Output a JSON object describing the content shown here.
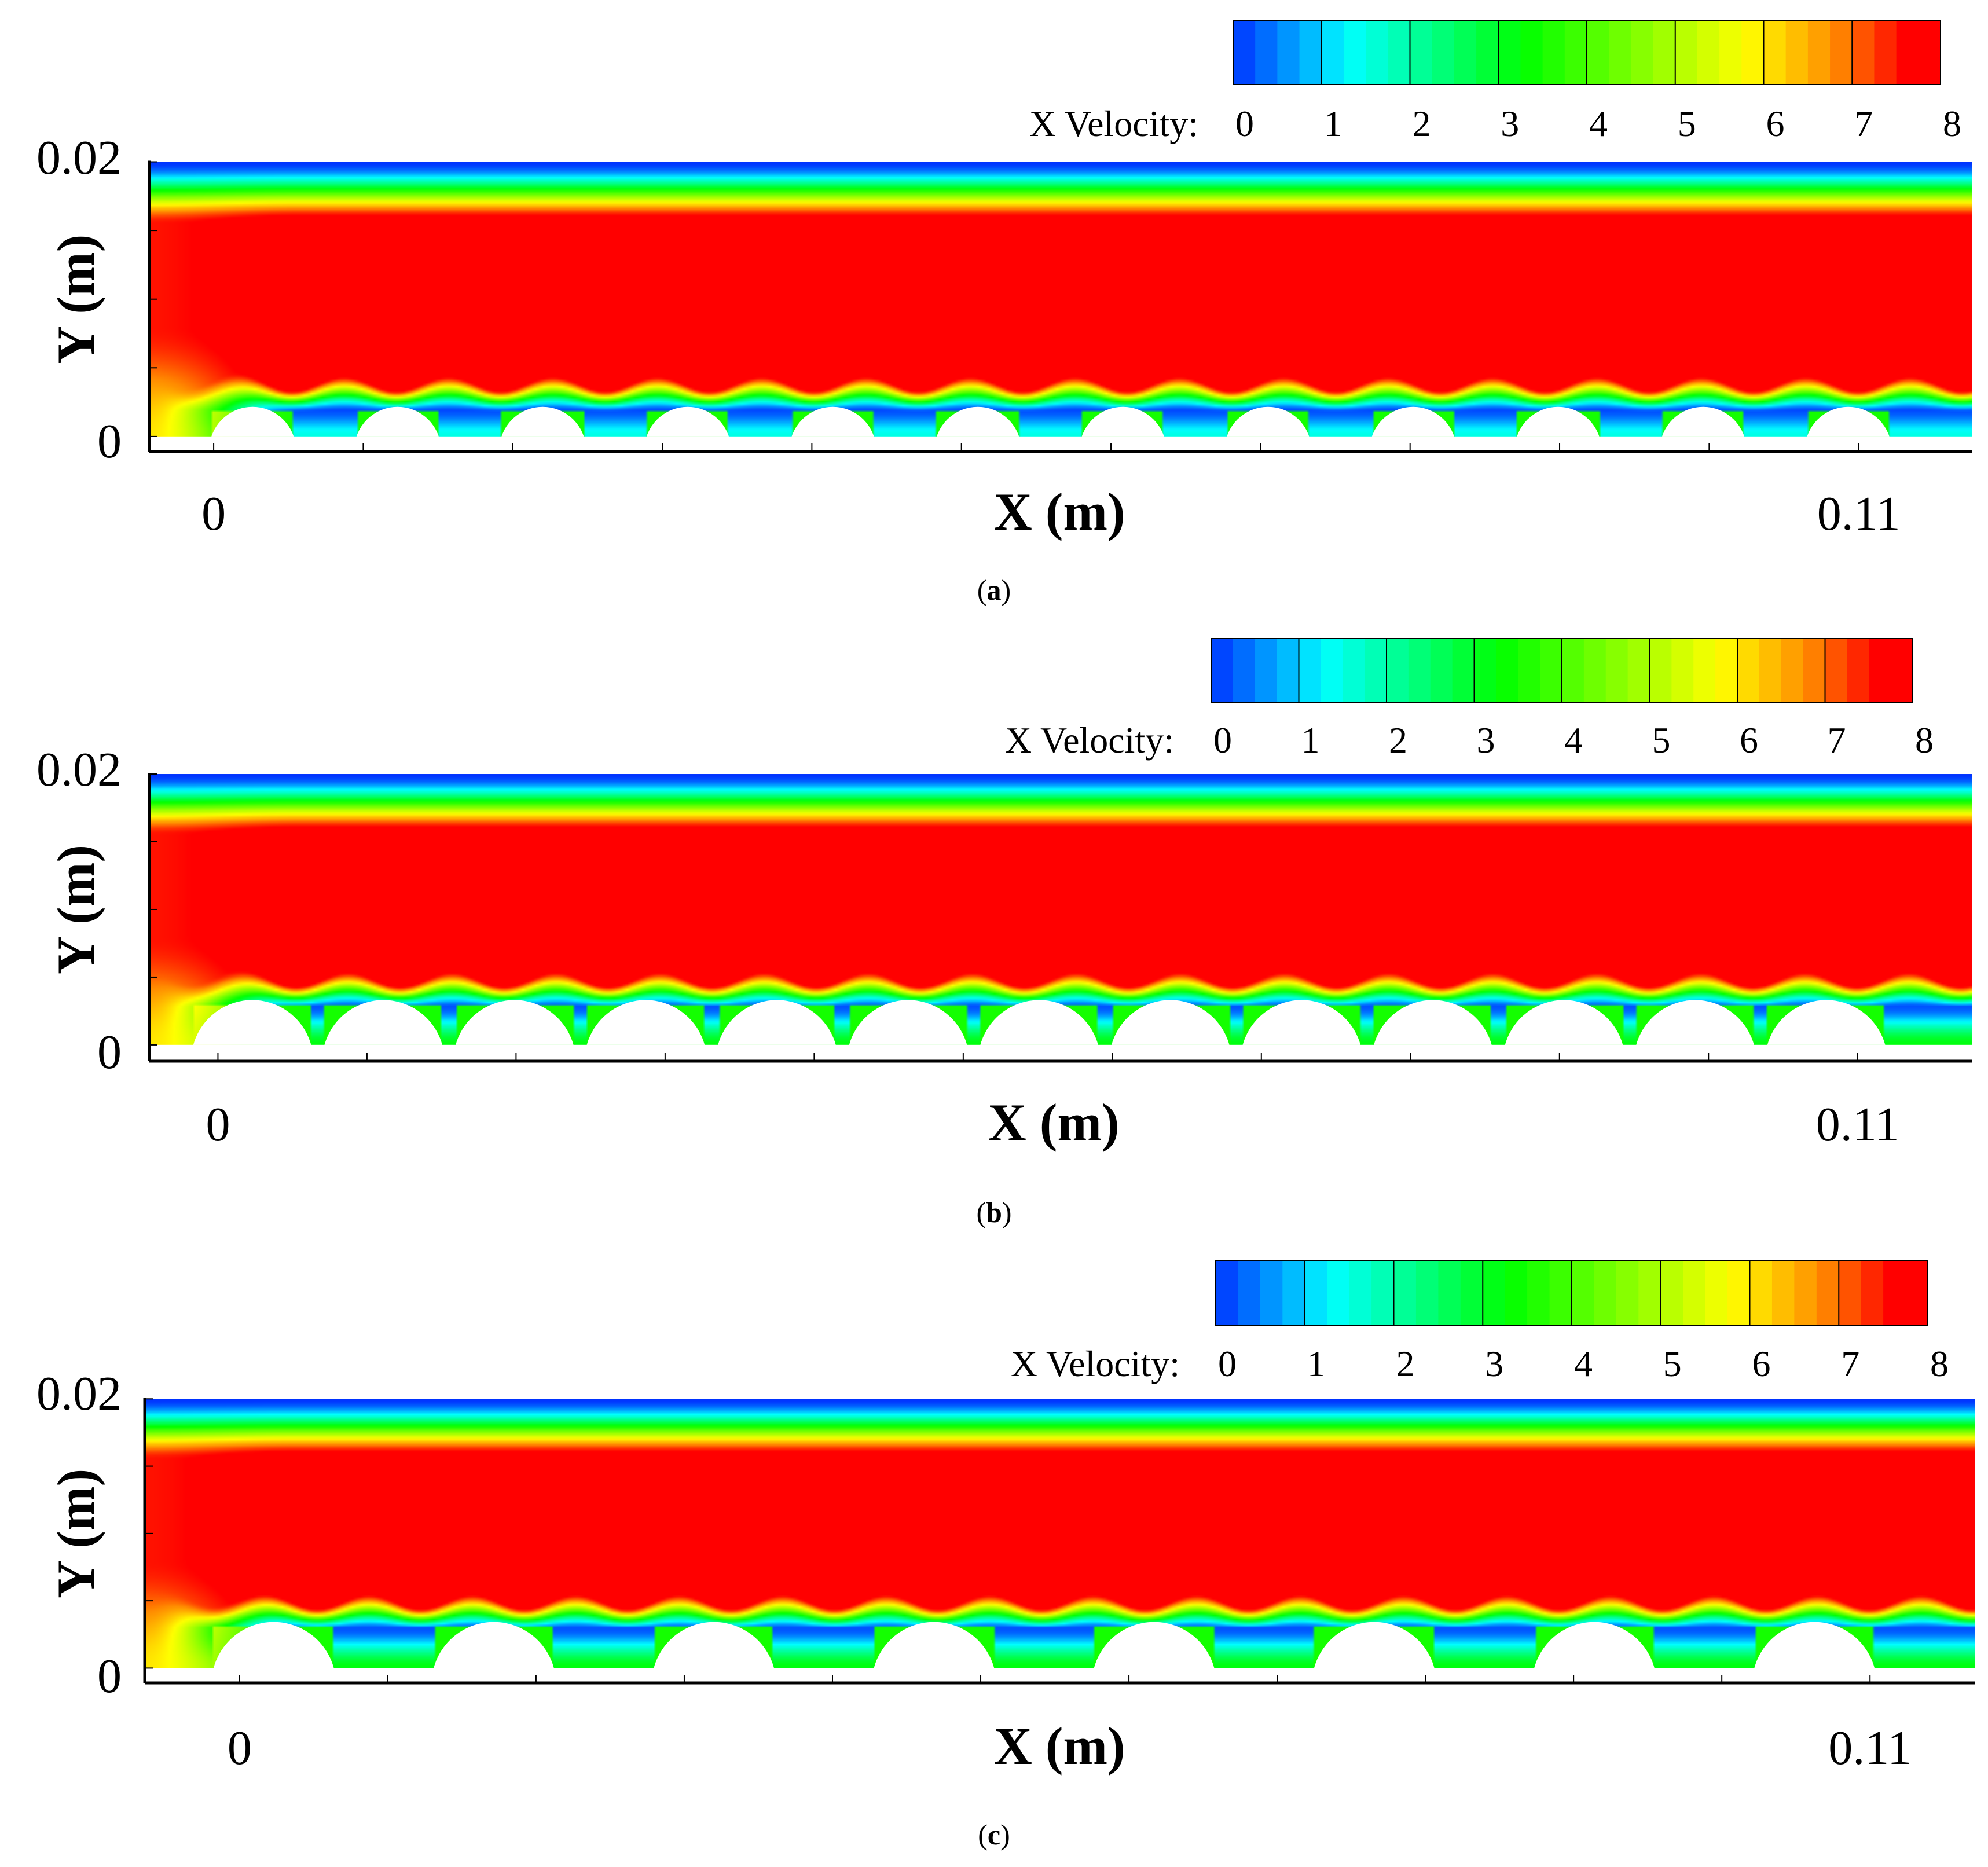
{
  "colors": {
    "cmap": [
      "#0032ff",
      "#00ffff",
      "#00ff00",
      "#ffff00",
      "#ff8c00",
      "#ff0000"
    ],
    "cmap_stops": [
      0,
      1.3,
      3.3,
      5.8,
      6.8,
      7.6
    ],
    "background": "#ffffff",
    "obstacle": "#ffffff"
  },
  "chart_data": [
    {
      "type": "heatmap",
      "panel_label": "a",
      "title": "",
      "xlabel": "X (m)",
      "ylabel": "Y (m)",
      "colorbar_label": "X Velocity:",
      "colorbar_ticks": [
        "0",
        "1",
        "2",
        "3",
        "4",
        "5",
        "6",
        "7",
        "8"
      ],
      "colorbar_range": [
        0,
        8
      ],
      "x_tick_labels": [
        "0",
        "0.11"
      ],
      "x_tick_values": [
        0,
        0.11
      ],
      "y_tick_labels": [
        "0.02",
        "0"
      ],
      "y_tick_values": [
        0.02,
        0
      ],
      "xlim": [
        -0.0043,
        0.1176
      ],
      "ylim": [
        -0.0011,
        0.0204
      ],
      "field": "X Velocity",
      "n_obstacles": 12,
      "obstacle_pitch_m": 0.0097,
      "obstacle_first_x_m": 0.0026,
      "obstacle_radius_m": 0.0029,
      "obstacle_height_m": 0.0019,
      "core_velocity": 8,
      "wake_velocity": 0.2,
      "wall_velocity": 1.5
    },
    {
      "type": "heatmap",
      "panel_label": "b",
      "title": "",
      "xlabel": "X (m)",
      "ylabel": "Y (m)",
      "colorbar_label": "X Velocity:",
      "colorbar_ticks": [
        "0",
        "1",
        "2",
        "3",
        "4",
        "5",
        "6",
        "7",
        "8"
      ],
      "colorbar_range": [
        0,
        8
      ],
      "x_tick_labels": [
        "0",
        "0.11"
      ],
      "x_tick_values": [
        0,
        0.11
      ],
      "y_tick_labels": [
        "0.02",
        "0"
      ],
      "y_tick_values": [
        0.02,
        0
      ],
      "xlim": [
        -0.0046,
        0.1177
      ],
      "ylim": [
        -0.0012,
        0.0203
      ],
      "field": "X Velocity",
      "n_obstacles": 13,
      "obstacle_pitch_m": 0.0088,
      "obstacle_first_x_m": 0.0023,
      "obstacle_radius_m": 0.0041,
      "obstacle_height_m": 0.0029,
      "core_velocity": 8,
      "wake_velocity": 0.2,
      "wall_velocity": 3.2
    },
    {
      "type": "heatmap",
      "panel_label": "c",
      "title": "",
      "xlabel": "X (m)",
      "ylabel": "Y (m)",
      "colorbar_label": "X Velocity:",
      "colorbar_ticks": [
        "0",
        "1",
        "2",
        "3",
        "4",
        "5",
        "6",
        "7",
        "8"
      ],
      "colorbar_range": [
        0,
        8
      ],
      "x_tick_labels": [
        "0",
        "0.11"
      ],
      "x_tick_values": [
        0,
        0.11
      ],
      "y_tick_labels": [
        "0.02",
        "0"
      ],
      "y_tick_values": [
        0.02,
        0
      ],
      "xlim": [
        -0.0064,
        0.1171
      ],
      "ylim": [
        -0.0011,
        0.0204
      ],
      "field": "X Velocity",
      "n_obstacles": 8,
      "obstacle_pitch_m": 0.01485,
      "obstacle_first_x_m": 0.0023,
      "obstacle_radius_m": 0.0042,
      "obstacle_height_m": 0.003,
      "core_velocity": 8,
      "wake_velocity": 0.2,
      "wall_velocity": 3.2
    }
  ]
}
